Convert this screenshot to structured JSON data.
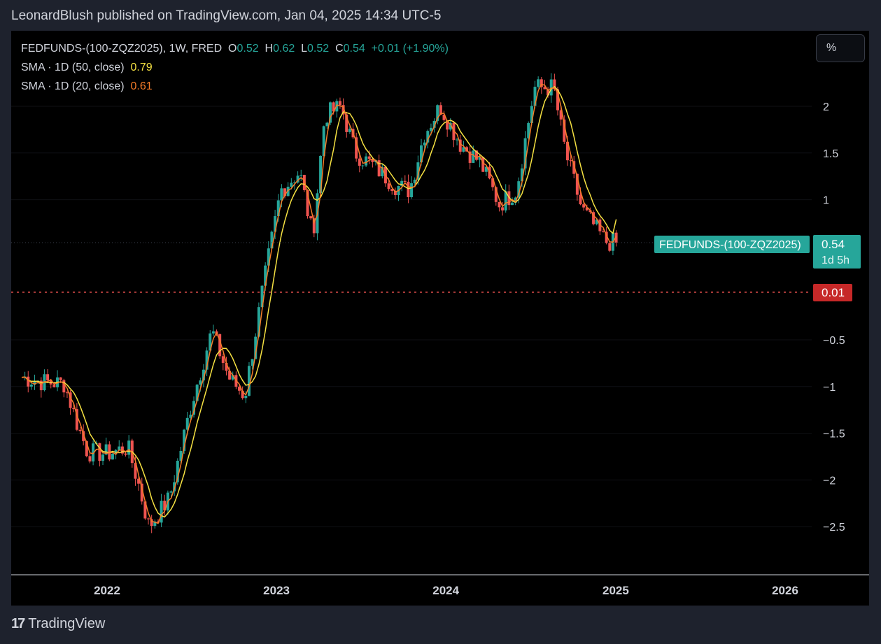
{
  "header": {
    "published_line": "LeonardBlush published on TradingView.com, Jan 04, 2025 14:34 UTC-5"
  },
  "legend": {
    "symbol_line": "FEDFUNDS-(100-ZQZ2025), 1W, FRED",
    "o_label": "O",
    "o_value": "0.52",
    "h_label": "H",
    "h_value": "0.62",
    "l_label": "L",
    "l_value": "0.52",
    "c_label": "C",
    "c_value": "0.54",
    "change": "+0.01 (+1.90%)",
    "sma50_label": "SMA · 1D (50, close)",
    "sma50_value": "0.79",
    "sma20_label": "SMA · 1D (20, close)",
    "sma20_value": "0.61"
  },
  "scale_button": {
    "label": "%"
  },
  "price_tag": {
    "symbol": "FEDFUNDS-(100-ZQZ2025)",
    "price": "0.54",
    "countdown": "1d 5h",
    "change_tag": "0.01"
  },
  "footer": {
    "brand": "TradingView"
  },
  "colors": {
    "up": "#26a69a",
    "down": "#ef5350",
    "sma50": "#f5e142",
    "sma20": "#f57c28",
    "background": "#000000",
    "frame": "#1e222d",
    "text": "#d1d4dc",
    "change_tag": "#c62828"
  },
  "chart_data": {
    "type": "candlestick",
    "interval": "1W",
    "x_tick_labels": [
      "2022",
      "2023",
      "2024",
      "2025",
      "2026"
    ],
    "y_tick_labels": [
      "2",
      "1.5",
      "1",
      "−0.5",
      "−1",
      "−1.5",
      "−2",
      "−2.5"
    ],
    "ylim": [
      -2.95,
      2.65
    ],
    "last_price": 0.54,
    "change_line_value": 0.01,
    "grid": true,
    "series": [
      {
        "name": "FEDFUNDS-(100-ZQZ2025)",
        "close_anchors": [
          [
            "2021-07-01",
            -0.9
          ],
          [
            "2021-08-15",
            -0.95
          ],
          [
            "2021-10-01",
            -0.97
          ],
          [
            "2021-11-01",
            -1.45
          ],
          [
            "2021-11-20",
            -1.7
          ],
          [
            "2022-01-01",
            -1.72
          ],
          [
            "2022-02-15",
            -1.65
          ],
          [
            "2022-03-10",
            -2.05
          ],
          [
            "2022-04-01",
            -2.5
          ],
          [
            "2022-05-15",
            -2.2
          ],
          [
            "2022-07-01",
            -1.2
          ],
          [
            "2022-08-15",
            -0.4
          ],
          [
            "2022-09-20",
            -0.9
          ],
          [
            "2022-10-25",
            -1.1
          ],
          [
            "2022-12-01",
            0.0
          ],
          [
            "2023-01-10",
            1.1
          ],
          [
            "2023-02-20",
            1.3
          ],
          [
            "2023-03-20",
            0.6
          ],
          [
            "2023-04-15",
            1.9
          ],
          [
            "2023-05-20",
            2.0
          ],
          [
            "2023-06-20",
            1.5
          ],
          [
            "2023-08-01",
            1.35
          ],
          [
            "2023-09-15",
            1.15
          ],
          [
            "2023-10-15",
            1.1
          ],
          [
            "2023-11-15",
            1.7
          ],
          [
            "2023-12-20",
            2.0
          ],
          [
            "2024-02-01",
            1.6
          ],
          [
            "2024-03-15",
            1.4
          ],
          [
            "2024-04-25",
            0.95
          ],
          [
            "2024-06-01",
            1.1
          ],
          [
            "2024-07-10",
            2.2
          ],
          [
            "2024-08-20",
            2.2
          ],
          [
            "2024-09-15",
            1.5
          ],
          [
            "2024-10-20",
            0.9
          ],
          [
            "2024-12-10",
            0.55
          ],
          [
            "2025-01-04",
            0.54
          ]
        ]
      },
      {
        "name": "SMA · 1D (50, close)",
        "last_value": 0.79
      },
      {
        "name": "SMA · 1D (20, close)",
        "last_value": 0.61
      }
    ]
  }
}
